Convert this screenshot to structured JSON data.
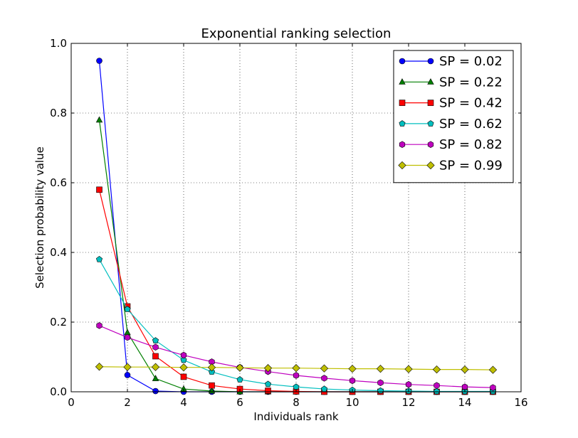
{
  "chart_data": {
    "type": "line",
    "title": "Exponential ranking selection",
    "xlabel": "Individuals rank",
    "ylabel": "Selection probability value",
    "xlim": [
      0,
      16
    ],
    "ylim": [
      0,
      1.0
    ],
    "xticks": [
      0,
      2,
      4,
      6,
      8,
      10,
      12,
      14,
      16
    ],
    "xtick_labels": [
      "0",
      "2",
      "4",
      "6",
      "8",
      "10",
      "12",
      "14",
      "16"
    ],
    "yticks": [
      0,
      0.2,
      0.4,
      0.6,
      0.8,
      1.0
    ],
    "ytick_labels": [
      "0.0",
      "0.2",
      "0.4",
      "0.6",
      "0.8",
      "1.0"
    ],
    "grid": true,
    "legend_position": "top-right",
    "x": [
      1,
      2,
      3,
      4,
      5,
      6,
      7,
      8,
      9,
      10,
      11,
      12,
      13,
      14,
      15
    ],
    "series": [
      {
        "name": "SP = 0.02",
        "color": "#0000ff",
        "marker": "circle",
        "values": [
          0.95,
          0.048,
          0.002,
          0.0,
          0.0,
          0.0,
          0.0,
          0.0,
          0.0,
          0.0,
          0.0,
          0.0,
          0.0,
          0.0,
          0.0
        ]
      },
      {
        "name": "SP = 0.22",
        "color": "#007f00",
        "marker": "triangle",
        "values": [
          0.78,
          0.17,
          0.038,
          0.008,
          0.002,
          0.0,
          0.0,
          0.0,
          0.0,
          0.0,
          0.0,
          0.0,
          0.0,
          0.0,
          0.0
        ]
      },
      {
        "name": "SP = 0.42",
        "color": "#ff0000",
        "marker": "square",
        "values": [
          0.58,
          0.245,
          0.102,
          0.043,
          0.018,
          0.008,
          0.003,
          0.001,
          0.0,
          0.0,
          0.0,
          0.0,
          0.0,
          0.0,
          0.0
        ]
      },
      {
        "name": "SP = 0.62",
        "color": "#00bfbf",
        "marker": "pentagon",
        "values": [
          0.38,
          0.237,
          0.147,
          0.091,
          0.057,
          0.035,
          0.022,
          0.014,
          0.008,
          0.005,
          0.003,
          0.002,
          0.001,
          0.001,
          0.001
        ]
      },
      {
        "name": "SP = 0.82",
        "color": "#bf00bf",
        "marker": "hexagon",
        "values": [
          0.19,
          0.156,
          0.128,
          0.105,
          0.086,
          0.07,
          0.058,
          0.047,
          0.039,
          0.032,
          0.026,
          0.021,
          0.018,
          0.014,
          0.012
        ]
      },
      {
        "name": "SP = 0.99",
        "color": "#bfbf00",
        "marker": "diamond",
        "values": [
          0.072,
          0.071,
          0.071,
          0.07,
          0.07,
          0.069,
          0.068,
          0.068,
          0.067,
          0.066,
          0.066,
          0.065,
          0.064,
          0.064,
          0.063
        ]
      }
    ]
  }
}
